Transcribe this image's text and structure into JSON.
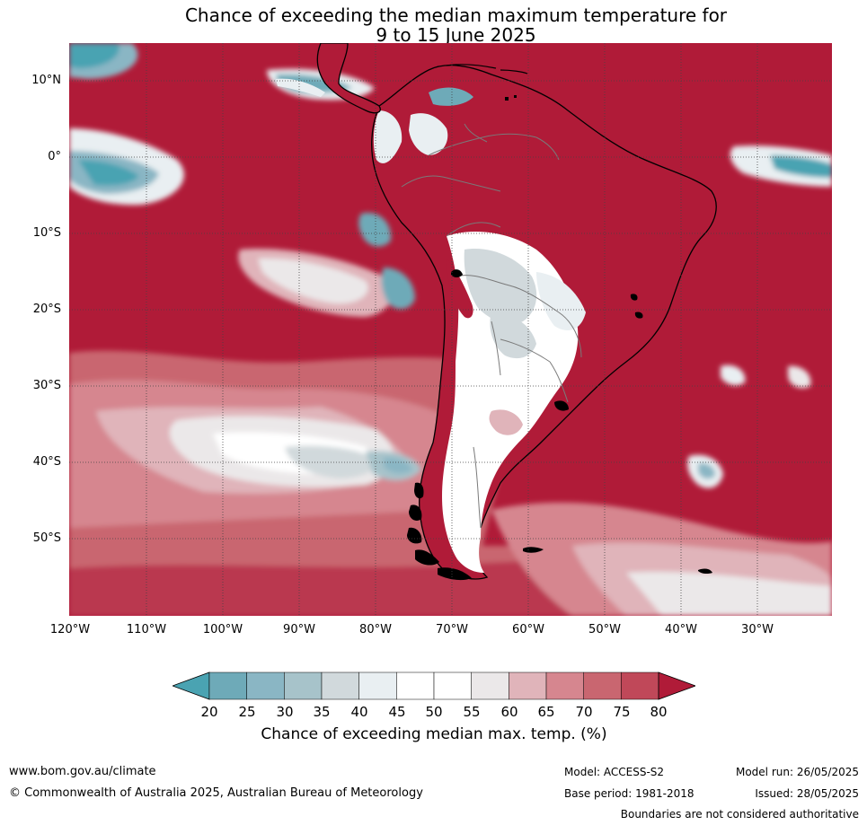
{
  "title": {
    "line1": "Chance of exceeding the median maximum temperature for",
    "line2": "9 to 15 June 2025"
  },
  "map": {
    "region": "South America and surrounding oceans",
    "latitude_labels": [
      "10°N",
      "0°",
      "10°S",
      "20°S",
      "30°S",
      "40°S",
      "50°S"
    ],
    "longitude_labels": [
      "120°W",
      "110°W",
      "100°W",
      "90°W",
      "80°W",
      "70°W",
      "60°W",
      "50°W",
      "40°W",
      "30°W"
    ],
    "gridlines": true,
    "dominant_fill_color": "#b01b38"
  },
  "colorbar": {
    "ticks": [
      "20",
      "25",
      "30",
      "35",
      "40",
      "45",
      "50",
      "55",
      "60",
      "65",
      "70",
      "75",
      "80"
    ],
    "colors": [
      "#4aa3b2",
      "#6eaab8",
      "#8ab6c4",
      "#a7c3ca",
      "#d1d9dc",
      "#e9eff2",
      "#ffffff",
      "#ffffff",
      "#ebe8e9",
      "#e0b4ba",
      "#d6868f",
      "#c96670",
      "#c04859",
      "#b01b38"
    ],
    "label": "Chance of exceeding median max. temp. (%)"
  },
  "footer": {
    "website": "www.bom.gov.au/climate",
    "copyright": "© Commonwealth of Australia 2025, Australian Bureau of Meteorology",
    "model": "Model: ACCESS-S2",
    "base_period": "Base period: 1981-2018",
    "model_run": "Model run: 26/05/2025",
    "issued": "Issued: 28/05/2025",
    "disclaimer": "Boundaries are not considered authoritative"
  }
}
